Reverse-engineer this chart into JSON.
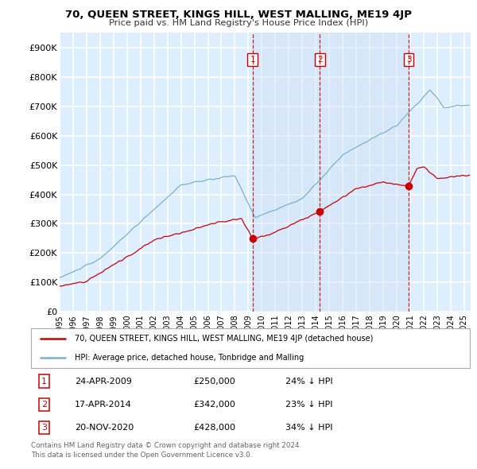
{
  "title": "70, QUEEN STREET, KINGS HILL, WEST MALLING, ME19 4JP",
  "subtitle": "Price paid vs. HM Land Registry's House Price Index (HPI)",
  "ylabel_ticks": [
    "£0",
    "£100K",
    "£200K",
    "£300K",
    "£400K",
    "£500K",
    "£600K",
    "£700K",
    "£800K",
    "£900K"
  ],
  "ytick_values": [
    0,
    100000,
    200000,
    300000,
    400000,
    500000,
    600000,
    700000,
    800000,
    900000
  ],
  "ylim": [
    0,
    950000
  ],
  "xlim_start": 1995.0,
  "xlim_end": 2025.5,
  "red_line_color": "#cc0000",
  "blue_line_color": "#7ab0d4",
  "transaction_color": "#cc0000",
  "dashed_line_color": "#cc0000",
  "shade_color": "#ddeeff",
  "transactions": [
    {
      "num": 1,
      "date_str": "24-APR-2009",
      "price": 250000,
      "pct": "24%",
      "direction": "↓",
      "year": 2009.31
    },
    {
      "num": 2,
      "date_str": "17-APR-2014",
      "price": 342000,
      "pct": "23%",
      "direction": "↓",
      "year": 2014.29
    },
    {
      "num": 3,
      "date_str": "20-NOV-2020",
      "price": 428000,
      "pct": "34%",
      "direction": "↓",
      "year": 2020.89
    }
  ],
  "legend_red_label": "70, QUEEN STREET, KINGS HILL, WEST MALLING, ME19 4JP (detached house)",
  "legend_blue_label": "HPI: Average price, detached house, Tonbridge and Malling",
  "footer_line1": "Contains HM Land Registry data © Crown copyright and database right 2024.",
  "footer_line2": "This data is licensed under the Open Government Licence v3.0.",
  "plot_bg_color": "#ddeeff",
  "grid_color": "#ffffff",
  "xtick_years": [
    1995,
    1996,
    1997,
    1998,
    1999,
    2000,
    2001,
    2002,
    2003,
    2004,
    2005,
    2006,
    2007,
    2008,
    2009,
    2010,
    2011,
    2012,
    2013,
    2014,
    2015,
    2016,
    2017,
    2018,
    2019,
    2020,
    2021,
    2022,
    2023,
    2024,
    2025
  ]
}
